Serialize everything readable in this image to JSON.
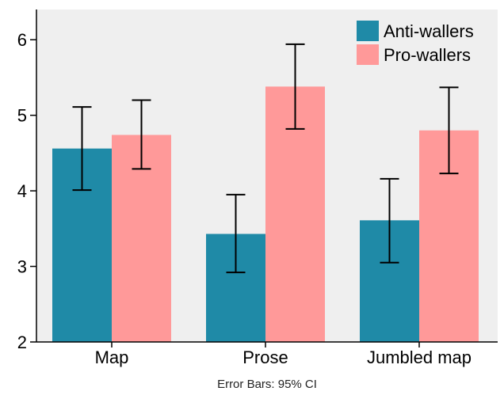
{
  "chart_data": {
    "type": "bar",
    "categories": [
      "Map",
      "Prose",
      "Jumbled map"
    ],
    "series": [
      {
        "name": "Anti-wallers",
        "color": "#1f8aa7",
        "values": [
          4.56,
          3.43,
          3.61
        ],
        "ci_low": [
          4.01,
          2.92,
          3.05
        ],
        "ci_high": [
          5.11,
          3.95,
          4.16
        ]
      },
      {
        "name": "Pro-wallers",
        "color": "#ff9999",
        "values": [
          4.74,
          5.38,
          4.8
        ],
        "ci_low": [
          4.29,
          4.82,
          4.23
        ],
        "ci_high": [
          5.2,
          5.94,
          5.37
        ]
      }
    ],
    "ylim": [
      2,
      6.4
    ],
    "yticks": [
      2,
      3,
      4,
      5,
      6
    ],
    "ytick_labels": [
      "2",
      "3",
      "4",
      "5",
      "6"
    ],
    "xlabel": "",
    "ylabel": "",
    "footnote": "Error Bars: 95% CI",
    "legend_position": "top-right",
    "plot_background": "#efefef",
    "grid": false
  }
}
